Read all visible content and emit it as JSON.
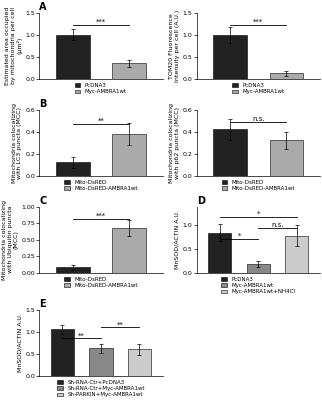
{
  "chart_data": [
    {
      "type": "bar",
      "title": "A",
      "ylabel": "Estimated area occupied\nby mitochondria per cell\n(μm²)",
      "categories": [
        null,
        null
      ],
      "series": [
        {
          "name": "PcDNA3",
          "color": "#222222",
          "values": [
            1.0,
            null
          ],
          "errors": [
            0.12,
            null
          ]
        },
        {
          "name": "Myc-AMBRA1wt",
          "color": "#aaaaaa",
          "values": [
            null,
            0.35
          ],
          "errors": [
            null,
            0.08
          ]
        }
      ],
      "ylim": [
        0,
        1.5
      ],
      "yticks": [
        {
          "value": 0,
          "label": "0.0"
        },
        0.5,
        1.0,
        1.5
      ],
      "tick_labels": "y",
      "annotations": [
        {
          "text": "***",
          "from": 0,
          "to": 1,
          "y": 1.23
        }
      ]
    },
    {
      "type": "bar",
      "ylabel": "TOM20 Fluorescence\nIntensity per cell (A.U.)",
      "categories": [
        null,
        null
      ],
      "series": [
        {
          "name": "PcDNA3",
          "color": "#222222",
          "values": [
            1.0,
            null
          ],
          "errors": [
            0.18,
            null
          ]
        },
        {
          "name": "Myc-AMBRA1wt",
          "color": "#aaaaaa",
          "values": [
            null,
            0.12
          ],
          "errors": [
            null,
            0.05
          ]
        }
      ],
      "ylim": [
        0,
        1.5
      ],
      "yticks": [
        {
          "value": 0,
          "label": "0.0"
        },
        0.5,
        1.0,
        1.5
      ],
      "tick_labels": "y",
      "annotations": [
        {
          "text": "***",
          "from": 0,
          "to": 1,
          "y": 1.23
        }
      ]
    },
    {
      "type": "bar",
      "title": "B",
      "ylabel": "Mitochondria colocalizing\nwith LC3 puncta (MCC)",
      "categories": [
        null,
        null
      ],
      "series": [
        {
          "name": "Mito-DsRED",
          "color": "#222222",
          "values": [
            0.12,
            null
          ],
          "errors": [
            0.05,
            null
          ]
        },
        {
          "name": "Mito-DsRED-AMBRA1wt",
          "color": "#aaaaaa",
          "values": [
            null,
            0.38
          ],
          "errors": [
            null,
            0.1
          ]
        }
      ],
      "ylim": [
        0,
        0.6
      ],
      "yticks": [
        {
          "value": 0,
          "label": "0.0"
        },
        0.2,
        0.4,
        0.6
      ],
      "tick_labels": "y",
      "annotations": [
        {
          "text": "**",
          "from": 0,
          "to": 1,
          "y": 0.468
        }
      ]
    },
    {
      "type": "bar",
      "ylabel": "Mitochondria colocalizing\nwith p62 puncta (MCC)",
      "categories": [
        null,
        null
      ],
      "series": [
        {
          "name": "Mito-DsRED",
          "color": "#222222",
          "values": [
            0.42,
            null
          ],
          "errors": [
            0.1,
            null
          ]
        },
        {
          "name": "Mito-DsRED-AMBRA1wt",
          "color": "#aaaaaa",
          "values": [
            null,
            0.32
          ],
          "errors": [
            null,
            0.08
          ]
        }
      ],
      "ylim": [
        0,
        0.6
      ],
      "yticks": [
        {
          "value": 0,
          "label": "0.0"
        },
        0.2,
        0.4,
        0.6
      ],
      "tick_labels": "y",
      "annotations": [
        {
          "text": "n.s.",
          "from": 0,
          "to": 1,
          "y": 0.492
        }
      ]
    },
    {
      "type": "bar",
      "title": "C",
      "ylabel": "Mitochondria colocalizing\nwith Ubiquitin puncta\n(MCC)",
      "categories": [
        null,
        null
      ],
      "series": [
        {
          "name": "Mito-DsRED",
          "color": "#222222",
          "values": [
            0.08,
            null
          ],
          "errors": [
            0.04,
            null
          ]
        },
        {
          "name": "Mito-DsRED-AMBRA1wt",
          "color": "#aaaaaa",
          "values": [
            null,
            0.68
          ],
          "errors": [
            null,
            0.12
          ]
        }
      ],
      "ylim": [
        0,
        1.0
      ],
      "yticks": [
        {
          "value": 0,
          "label": "0.00"
        },
        0.25,
        {
          "value": 0.5,
          "label": "0.50"
        },
        0.75,
        {
          "value": 1.0,
          "label": "1.00"
        }
      ],
      "tick_labels": "y",
      "annotations": [
        {
          "text": "***",
          "from": 0,
          "to": 1,
          "y": 0.82
        }
      ]
    },
    {
      "type": "bar",
      "title": "D",
      "ylabel": "MnSOD/ACTIN A.U.",
      "categories": [
        null,
        null,
        null
      ],
      "series": [
        {
          "name": "PcDNA3",
          "color": "#222222",
          "values": [
            0.85,
            null,
            null
          ],
          "errors": [
            0.18,
            null,
            null
          ]
        },
        {
          "name": "Myc-AMBRA1wt",
          "color": "#888888",
          "values": [
            null,
            0.18,
            null
          ],
          "errors": [
            null,
            0.06,
            null
          ]
        },
        {
          "name": "Myc-AMBRA1wt+NH4Cl",
          "color": "#cccccc",
          "values": [
            null,
            null,
            0.78
          ],
          "errors": [
            null,
            null,
            0.22
          ]
        }
      ],
      "ylim": [
        0,
        1.4
      ],
      "yticks": [
        {
          "value": 0,
          "label": "0.0"
        },
        0.5,
        1.0
      ],
      "tick_labels": "y",
      "annotations": [
        {
          "text": "*",
          "from": 0,
          "to": 1,
          "y": 0.72
        },
        {
          "text": "n.s.",
          "from": 1,
          "to": 2,
          "y": 0.95
        },
        {
          "text": "*",
          "from": 0,
          "to": 2,
          "y": 1.18
        }
      ]
    },
    {
      "type": "bar",
      "title": "E",
      "ylabel": "MnSOD/ACTIN A.U.",
      "categories": [
        null,
        null,
        null
      ],
      "series": [
        {
          "name": "Sh-RNA-Ctr+PcDNA3",
          "color": "#222222",
          "values": [
            1.05,
            null,
            null
          ],
          "errors": [
            0.1,
            null,
            null
          ]
        },
        {
          "name": "Sh-RNA-Ctr+Myc-AMBRA1wt",
          "color": "#888888",
          "values": [
            null,
            0.62,
            null
          ],
          "errors": [
            null,
            0.1,
            null
          ]
        },
        {
          "name": "Sh-PARKIN+Myc-AMBRA1wt",
          "color": "#cccccc",
          "values": [
            null,
            null,
            0.6
          ],
          "errors": [
            null,
            null,
            0.12
          ]
        }
      ],
      "ylim": [
        0,
        1.5
      ],
      "yticks": [
        {
          "value": 0,
          "label": "0.0"
        },
        0.5,
        1.0,
        1.5
      ],
      "tick_labels": "y",
      "annotations": [
        {
          "text": "**",
          "from": 0,
          "to": 1,
          "y": 0.85
        },
        {
          "text": "**",
          "from": 1,
          "to": 2,
          "y": 1.1
        }
      ]
    }
  ]
}
